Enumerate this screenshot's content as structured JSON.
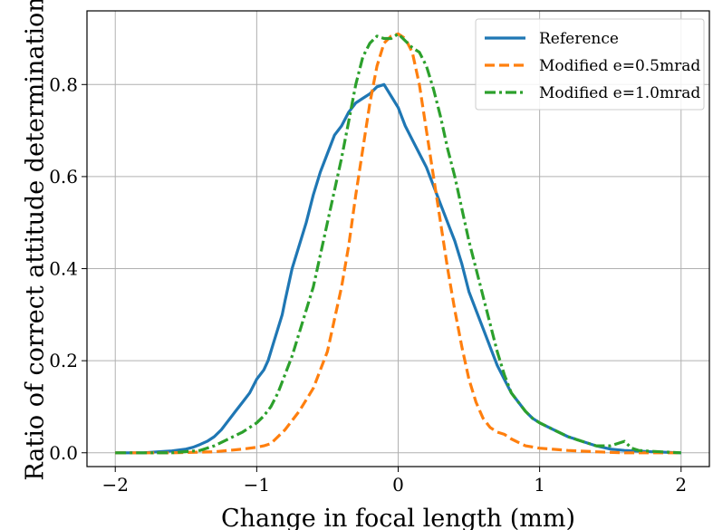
{
  "chart_data": {
    "type": "line",
    "title": "",
    "xlabel": "Change in focal length (mm)",
    "ylabel": "Ratio of correct attitude determination",
    "xlim": [
      -2.2,
      2.2
    ],
    "ylim": [
      -0.03,
      0.96
    ],
    "xticks": [
      -2,
      -1,
      0,
      1,
      2
    ],
    "xtick_labels": [
      "−2",
      "−1",
      "0",
      "1",
      "2"
    ],
    "yticks": [
      0.0,
      0.2,
      0.4,
      0.6,
      0.8
    ],
    "ytick_labels": [
      "0.0",
      "0.2",
      "0.4",
      "0.6",
      "0.8"
    ],
    "grid": true,
    "legend_position": "top-right",
    "series": [
      {
        "name": "Reference",
        "color": "#1f77b4",
        "linestyle": "solid",
        "x": [
          -2.0,
          -1.8,
          -1.7,
          -1.6,
          -1.5,
          -1.45,
          -1.4,
          -1.35,
          -1.3,
          -1.25,
          -1.2,
          -1.15,
          -1.1,
          -1.05,
          -1.0,
          -0.95,
          -0.92,
          -0.9,
          -0.88,
          -0.85,
          -0.82,
          -0.8,
          -0.75,
          -0.7,
          -0.65,
          -0.6,
          -0.55,
          -0.5,
          -0.45,
          -0.4,
          -0.35,
          -0.3,
          -0.25,
          -0.2,
          -0.15,
          -0.1,
          -0.05,
          0.0,
          0.05,
          0.1,
          0.15,
          0.2,
          0.25,
          0.3,
          0.35,
          0.4,
          0.45,
          0.5,
          0.55,
          0.6,
          0.65,
          0.7,
          0.75,
          0.8,
          0.85,
          0.9,
          0.95,
          1.0,
          1.1,
          1.2,
          1.3,
          1.4,
          1.5,
          1.6,
          1.8,
          2.0
        ],
        "y": [
          0.0,
          0.0,
          0.002,
          0.004,
          0.008,
          0.012,
          0.018,
          0.025,
          0.035,
          0.05,
          0.07,
          0.09,
          0.11,
          0.13,
          0.16,
          0.18,
          0.2,
          0.22,
          0.24,
          0.27,
          0.3,
          0.33,
          0.4,
          0.45,
          0.5,
          0.56,
          0.61,
          0.65,
          0.69,
          0.71,
          0.74,
          0.76,
          0.77,
          0.78,
          0.795,
          0.8,
          0.775,
          0.75,
          0.71,
          0.68,
          0.65,
          0.62,
          0.58,
          0.54,
          0.5,
          0.46,
          0.41,
          0.35,
          0.31,
          0.27,
          0.23,
          0.19,
          0.16,
          0.13,
          0.11,
          0.09,
          0.075,
          0.065,
          0.05,
          0.035,
          0.025,
          0.015,
          0.008,
          0.005,
          0.002,
          0.0
        ]
      },
      {
        "name": "Modified e=0.5mrad",
        "color": "#ff7f0e",
        "linestyle": "dashed",
        "x": [
          -2.0,
          -1.6,
          -1.3,
          -1.1,
          -1.0,
          -0.95,
          -0.9,
          -0.85,
          -0.8,
          -0.75,
          -0.7,
          -0.65,
          -0.6,
          -0.55,
          -0.5,
          -0.45,
          -0.4,
          -0.35,
          -0.3,
          -0.25,
          -0.2,
          -0.15,
          -0.1,
          -0.05,
          0.0,
          0.05,
          0.1,
          0.15,
          0.2,
          0.25,
          0.3,
          0.35,
          0.4,
          0.45,
          0.5,
          0.55,
          0.6,
          0.65,
          0.7,
          0.75,
          0.8,
          0.9,
          1.0,
          1.2,
          1.4,
          1.6,
          2.0
        ],
        "y": [
          0.0,
          0.0,
          0.002,
          0.008,
          0.012,
          0.015,
          0.02,
          0.035,
          0.05,
          0.07,
          0.09,
          0.115,
          0.14,
          0.18,
          0.22,
          0.29,
          0.36,
          0.45,
          0.56,
          0.66,
          0.76,
          0.84,
          0.89,
          0.905,
          0.91,
          0.9,
          0.87,
          0.8,
          0.7,
          0.6,
          0.5,
          0.4,
          0.31,
          0.23,
          0.16,
          0.11,
          0.075,
          0.055,
          0.045,
          0.04,
          0.03,
          0.015,
          0.01,
          0.005,
          0.002,
          0.0,
          0.0
        ]
      },
      {
        "name": "Modified e=1.0mrad",
        "color": "#2ca02c",
        "linestyle": "dashdot",
        "x": [
          -2.0,
          -1.6,
          -1.4,
          -1.3,
          -1.2,
          -1.1,
          -1.0,
          -0.95,
          -0.9,
          -0.85,
          -0.8,
          -0.75,
          -0.7,
          -0.65,
          -0.6,
          -0.55,
          -0.5,
          -0.45,
          -0.4,
          -0.35,
          -0.3,
          -0.25,
          -0.2,
          -0.15,
          -0.1,
          -0.05,
          0.0,
          0.05,
          0.1,
          0.15,
          0.2,
          0.25,
          0.3,
          0.35,
          0.4,
          0.45,
          0.5,
          0.55,
          0.6,
          0.65,
          0.7,
          0.75,
          0.8,
          0.85,
          0.9,
          0.95,
          1.0,
          1.1,
          1.2,
          1.3,
          1.4,
          1.5,
          1.55,
          1.6,
          1.65,
          1.7,
          1.8,
          2.0
        ],
        "y": [
          0.0,
          0.0,
          0.005,
          0.015,
          0.03,
          0.045,
          0.065,
          0.08,
          0.1,
          0.13,
          0.17,
          0.21,
          0.26,
          0.31,
          0.36,
          0.43,
          0.5,
          0.57,
          0.64,
          0.72,
          0.8,
          0.86,
          0.89,
          0.905,
          0.9,
          0.9,
          0.91,
          0.895,
          0.88,
          0.87,
          0.84,
          0.79,
          0.73,
          0.66,
          0.6,
          0.53,
          0.46,
          0.4,
          0.34,
          0.28,
          0.22,
          0.17,
          0.13,
          0.11,
          0.09,
          0.075,
          0.065,
          0.05,
          0.035,
          0.025,
          0.015,
          0.015,
          0.02,
          0.025,
          0.01,
          0.005,
          0.003,
          0.0
        ]
      }
    ]
  }
}
